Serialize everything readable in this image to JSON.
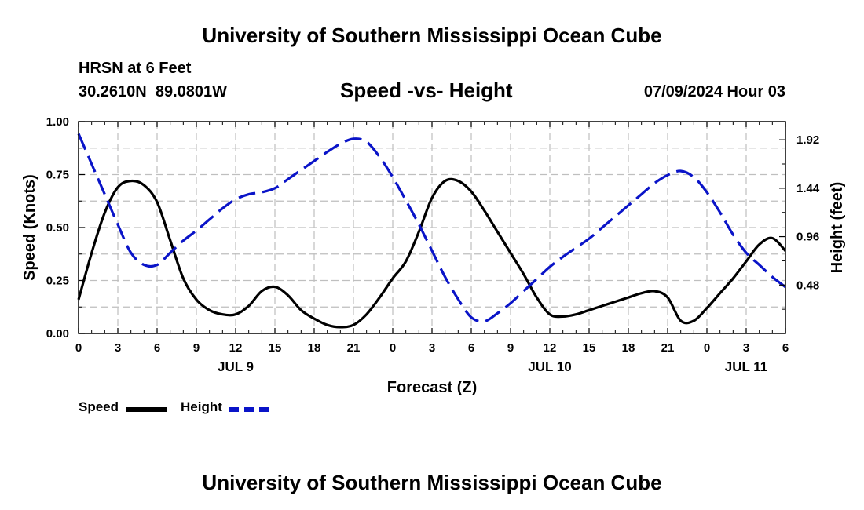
{
  "header": {
    "title": "University of Southern Mississippi Ocean Cube",
    "station": "HRSN at 6 Feet",
    "coords": "30.2610N  89.0801W",
    "datetime": "07/09/2024 Hour 03",
    "footer_title": "University of Southern Mississippi Ocean Cube"
  },
  "colors": {
    "speed": "#000000",
    "height": "#0a14c8",
    "grid": "#bfbfbf"
  },
  "chart_data": {
    "type": "line",
    "title": "Speed -vs- Height",
    "xlabel": "Forecast (Z)",
    "ylabel": "Speed (Knots)",
    "y2label": "Height (feet)",
    "x_range": [
      0,
      54
    ],
    "ylim": [
      0,
      1.0
    ],
    "y2lim": [
      0,
      2.1
    ],
    "y_ticks": [
      0,
      0.25,
      0.5,
      0.75,
      1.0
    ],
    "y_tick_labels": [
      "0.00",
      "0.25",
      "0.50",
      "0.75",
      "1.00"
    ],
    "y2_ticks": [
      0.48,
      0.96,
      1.44,
      1.92
    ],
    "y2_tick_labels": [
      "0.48",
      "0.96",
      "1.44",
      "1.92"
    ],
    "x_ticks": [
      0,
      3,
      6,
      9,
      12,
      15,
      18,
      21,
      24,
      27,
      30,
      33,
      36,
      39,
      42,
      45,
      48,
      51,
      54
    ],
    "x_tick_labels": [
      "0",
      "3",
      "6",
      "9",
      "12",
      "15",
      "18",
      "21",
      "0",
      "3",
      "6",
      "9",
      "12",
      "15",
      "18",
      "21",
      "0",
      "3",
      "6"
    ],
    "day_labels": [
      {
        "x": 12,
        "label": "JUL 9"
      },
      {
        "x": 36,
        "label": "JUL 10"
      },
      {
        "x": 51,
        "label": "JUL 11"
      }
    ],
    "grid": true,
    "series": [
      {
        "name": "Speed",
        "axis": "left",
        "style": "solid",
        "x": [
          0,
          1,
          2,
          3,
          4,
          5,
          6,
          7,
          8,
          9,
          10,
          11,
          12,
          13,
          14,
          15,
          16,
          17,
          18,
          19,
          20,
          21,
          22,
          23,
          24,
          25,
          26,
          27,
          28,
          29,
          30,
          31,
          32,
          33,
          34,
          35,
          36,
          37,
          38,
          39,
          40,
          41,
          42,
          43,
          44,
          45,
          46,
          47,
          48,
          49,
          50,
          51,
          52,
          53,
          54
        ],
        "values": [
          0.16,
          0.38,
          0.57,
          0.69,
          0.72,
          0.7,
          0.62,
          0.44,
          0.26,
          0.16,
          0.11,
          0.09,
          0.09,
          0.13,
          0.2,
          0.22,
          0.18,
          0.11,
          0.07,
          0.04,
          0.03,
          0.04,
          0.09,
          0.17,
          0.26,
          0.34,
          0.48,
          0.64,
          0.72,
          0.72,
          0.67,
          0.58,
          0.48,
          0.38,
          0.28,
          0.17,
          0.09,
          0.08,
          0.09,
          0.11,
          0.13,
          0.15,
          0.17,
          0.19,
          0.2,
          0.17,
          0.06,
          0.06,
          0.12,
          0.19,
          0.26,
          0.34,
          0.42,
          0.45,
          0.39
        ]
      },
      {
        "name": "Height",
        "axis": "right",
        "style": "dashed",
        "x": [
          0,
          1,
          2,
          3,
          4,
          5,
          6,
          7,
          8,
          9,
          10,
          11,
          12,
          13,
          14,
          15,
          16,
          17,
          18,
          19,
          20,
          21,
          22,
          23,
          24,
          25,
          26,
          27,
          28,
          29,
          30,
          31,
          32,
          33,
          34,
          35,
          36,
          37,
          38,
          39,
          40,
          41,
          42,
          43,
          44,
          45,
          46,
          47,
          48,
          49,
          50,
          51,
          52,
          53,
          54
        ],
        "values": [
          1.98,
          1.68,
          1.38,
          1.08,
          0.8,
          0.68,
          0.68,
          0.8,
          0.92,
          1.02,
          1.13,
          1.24,
          1.33,
          1.38,
          1.4,
          1.44,
          1.53,
          1.62,
          1.71,
          1.8,
          1.88,
          1.93,
          1.9,
          1.75,
          1.55,
          1.32,
          1.08,
          0.82,
          0.56,
          0.34,
          0.16,
          0.12,
          0.2,
          0.3,
          0.42,
          0.54,
          0.66,
          0.76,
          0.85,
          0.94,
          1.05,
          1.16,
          1.27,
          1.38,
          1.49,
          1.57,
          1.61,
          1.55,
          1.4,
          1.2,
          0.98,
          0.8,
          0.68,
          0.56,
          0.46
        ]
      }
    ],
    "legend": [
      {
        "name": "Speed"
      },
      {
        "name": "Height"
      }
    ]
  }
}
